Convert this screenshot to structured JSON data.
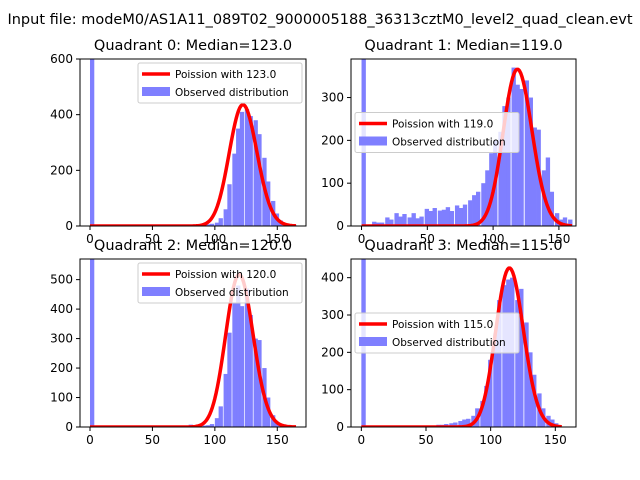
{
  "figure_title": "Input file: modeM0/AS1A11_089T02_9000005188_36313cztM0_level2_quad_clean.evt",
  "colors": {
    "poisson": "#ff0000",
    "observed": "#7f7fff",
    "axis": "#000000"
  },
  "chart_data": [
    {
      "type": "bar",
      "title": "Quadrant 0: Median=123.0",
      "xlim": [
        -8,
        173
      ],
      "ylim": [
        0,
        600
      ],
      "xticks": [
        0,
        50,
        100,
        150
      ],
      "yticks": [
        0,
        200,
        400,
        600
      ],
      "legend": {
        "placement": "top-right",
        "poisson_label": "Poission with 123.0",
        "observed_label": "Observed distribution"
      },
      "poisson_mean": 123.0,
      "poisson_range": [
        0,
        165
      ],
      "poisson_scale": 12120,
      "bin_width": 3.44,
      "bins": [
        {
          "x": 0,
          "y": 610
        },
        {
          "x": 69,
          "y": 3
        },
        {
          "x": 72,
          "y": 3
        },
        {
          "x": 76,
          "y": 5
        },
        {
          "x": 79,
          "y": 4
        },
        {
          "x": 83,
          "y": 4
        },
        {
          "x": 86,
          "y": 5
        },
        {
          "x": 90,
          "y": 5
        },
        {
          "x": 93,
          "y": 6
        },
        {
          "x": 96,
          "y": 8
        },
        {
          "x": 100,
          "y": 12
        },
        {
          "x": 103,
          "y": 28
        },
        {
          "x": 107,
          "y": 60
        },
        {
          "x": 110,
          "y": 150
        },
        {
          "x": 114,
          "y": 260
        },
        {
          "x": 117,
          "y": 350
        },
        {
          "x": 120,
          "y": 410
        },
        {
          "x": 124,
          "y": 420
        },
        {
          "x": 127,
          "y": 395
        },
        {
          "x": 131,
          "y": 380
        },
        {
          "x": 134,
          "y": 330
        },
        {
          "x": 138,
          "y": 245
        },
        {
          "x": 141,
          "y": 160
        },
        {
          "x": 145,
          "y": 90
        },
        {
          "x": 148,
          "y": 45
        },
        {
          "x": 151,
          "y": 20
        },
        {
          "x": 155,
          "y": 8
        },
        {
          "x": 158,
          "y": 5
        },
        {
          "x": 162,
          "y": 3
        }
      ]
    },
    {
      "type": "bar",
      "title": "Quadrant 1: Median=119.0",
      "xlim": [
        -8,
        163
      ],
      "ylim": [
        0,
        390
      ],
      "xticks": [
        0,
        50,
        100,
        150
      ],
      "yticks": [
        0,
        100,
        200,
        300
      ],
      "legend": {
        "placement": "center-left",
        "poisson_label": "Poission with 119.0",
        "observed_label": "Observed distribution"
      },
      "poisson_mean": 119.0,
      "poisson_range": [
        0,
        160
      ],
      "poisson_scale": 10010,
      "bin_width": 3.3,
      "bins": [
        {
          "x": 0,
          "y": 395
        },
        {
          "x": 8,
          "y": 10
        },
        {
          "x": 11,
          "y": 8
        },
        {
          "x": 14,
          "y": 8
        },
        {
          "x": 18,
          "y": 20
        },
        {
          "x": 21,
          "y": 15
        },
        {
          "x": 25,
          "y": 30
        },
        {
          "x": 28,
          "y": 22
        },
        {
          "x": 31,
          "y": 28
        },
        {
          "x": 35,
          "y": 20
        },
        {
          "x": 38,
          "y": 30
        },
        {
          "x": 41,
          "y": 18
        },
        {
          "x": 44,
          "y": 22
        },
        {
          "x": 48,
          "y": 40
        },
        {
          "x": 51,
          "y": 35
        },
        {
          "x": 54,
          "y": 42
        },
        {
          "x": 58,
          "y": 36
        },
        {
          "x": 61,
          "y": 38
        },
        {
          "x": 64,
          "y": 44
        },
        {
          "x": 67,
          "y": 35
        },
        {
          "x": 71,
          "y": 48
        },
        {
          "x": 74,
          "y": 42
        },
        {
          "x": 77,
          "y": 50
        },
        {
          "x": 81,
          "y": 60
        },
        {
          "x": 84,
          "y": 72
        },
        {
          "x": 87,
          "y": 80
        },
        {
          "x": 91,
          "y": 100
        },
        {
          "x": 94,
          "y": 130
        },
        {
          "x": 97,
          "y": 170
        },
        {
          "x": 100,
          "y": 200
        },
        {
          "x": 104,
          "y": 220
        },
        {
          "x": 107,
          "y": 280
        },
        {
          "x": 110,
          "y": 300
        },
        {
          "x": 114,
          "y": 370
        },
        {
          "x": 117,
          "y": 330
        },
        {
          "x": 120,
          "y": 320
        },
        {
          "x": 124,
          "y": 340
        },
        {
          "x": 127,
          "y": 300
        },
        {
          "x": 130,
          "y": 230
        },
        {
          "x": 133,
          "y": 225
        },
        {
          "x": 137,
          "y": 130
        },
        {
          "x": 140,
          "y": 160
        },
        {
          "x": 143,
          "y": 80
        },
        {
          "x": 147,
          "y": 30
        },
        {
          "x": 150,
          "y": 15
        },
        {
          "x": 153,
          "y": 20
        },
        {
          "x": 157,
          "y": 15
        }
      ]
    },
    {
      "type": "bar",
      "title": "Quadrant 2: Median=120.0",
      "xlim": [
        -8,
        173
      ],
      "ylim": [
        0,
        570
      ],
      "xticks": [
        0,
        50,
        100,
        150
      ],
      "yticks": [
        0,
        100,
        200,
        300,
        400,
        500
      ],
      "legend": {
        "placement": "top-right",
        "poisson_label": "Poission with 120.0",
        "observed_label": "Observed distribution"
      },
      "poisson_mean": 120.0,
      "poisson_range": [
        0,
        165
      ],
      "poisson_scale": 14200,
      "bin_width": 3.44,
      "bins": [
        {
          "x": 0,
          "y": 580
        },
        {
          "x": 76,
          "y": 5
        },
        {
          "x": 79,
          "y": 8
        },
        {
          "x": 83,
          "y": 5
        },
        {
          "x": 86,
          "y": 4
        },
        {
          "x": 90,
          "y": 5
        },
        {
          "x": 93,
          "y": 6
        },
        {
          "x": 96,
          "y": 10
        },
        {
          "x": 100,
          "y": 30
        },
        {
          "x": 103,
          "y": 70
        },
        {
          "x": 107,
          "y": 180
        },
        {
          "x": 110,
          "y": 320
        },
        {
          "x": 114,
          "y": 420
        },
        {
          "x": 117,
          "y": 480
        },
        {
          "x": 120,
          "y": 410
        },
        {
          "x": 124,
          "y": 470
        },
        {
          "x": 127,
          "y": 380
        },
        {
          "x": 131,
          "y": 300
        },
        {
          "x": 134,
          "y": 295
        },
        {
          "x": 138,
          "y": 200
        },
        {
          "x": 141,
          "y": 100
        },
        {
          "x": 145,
          "y": 40
        },
        {
          "x": 148,
          "y": 15
        },
        {
          "x": 151,
          "y": 8
        },
        {
          "x": 155,
          "y": 4
        }
      ]
    },
    {
      "type": "bar",
      "title": "Quadrant 3: Median=115.0",
      "xlim": [
        -8,
        166
      ],
      "ylim": [
        0,
        450
      ],
      "xticks": [
        0,
        50,
        100,
        150
      ],
      "yticks": [
        0,
        100,
        200,
        300,
        400
      ],
      "legend": {
        "placement": "center-left",
        "poisson_label": "Poission with 115.0",
        "observed_label": "Observed distribution"
      },
      "poisson_mean": 115.0,
      "poisson_range": [
        0,
        155
      ],
      "poisson_scale": 11450,
      "bin_width": 3.4,
      "bins": [
        {
          "x": 0,
          "y": 455
        },
        {
          "x": 54,
          "y": 4
        },
        {
          "x": 58,
          "y": 6
        },
        {
          "x": 61,
          "y": 6
        },
        {
          "x": 64,
          "y": 8
        },
        {
          "x": 68,
          "y": 10
        },
        {
          "x": 71,
          "y": 12
        },
        {
          "x": 75,
          "y": 16
        },
        {
          "x": 78,
          "y": 20
        },
        {
          "x": 81,
          "y": 22
        },
        {
          "x": 85,
          "y": 30
        },
        {
          "x": 88,
          "y": 50
        },
        {
          "x": 92,
          "y": 70
        },
        {
          "x": 95,
          "y": 110
        },
        {
          "x": 98,
          "y": 180
        },
        {
          "x": 102,
          "y": 250
        },
        {
          "x": 105,
          "y": 340
        },
        {
          "x": 109,
          "y": 380
        },
        {
          "x": 112,
          "y": 395
        },
        {
          "x": 115,
          "y": 400
        },
        {
          "x": 119,
          "y": 340
        },
        {
          "x": 122,
          "y": 370
        },
        {
          "x": 126,
          "y": 280
        },
        {
          "x": 129,
          "y": 200
        },
        {
          "x": 132,
          "y": 140
        },
        {
          "x": 136,
          "y": 90
        },
        {
          "x": 139,
          "y": 50
        },
        {
          "x": 143,
          "y": 30
        },
        {
          "x": 146,
          "y": 20
        },
        {
          "x": 149,
          "y": 10
        }
      ]
    }
  ]
}
